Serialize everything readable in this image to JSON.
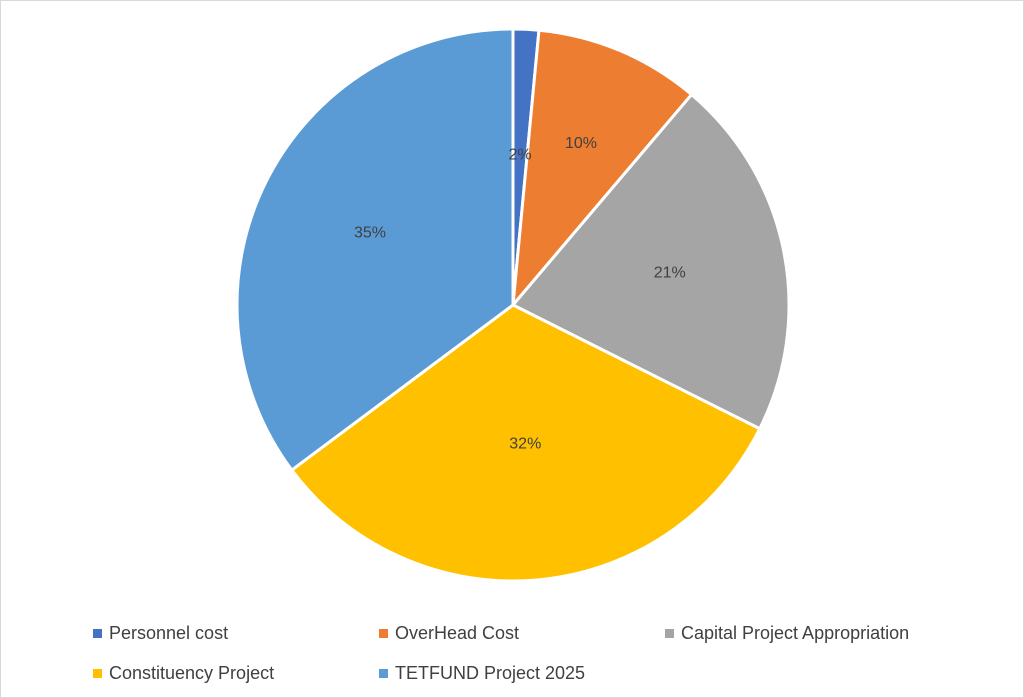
{
  "chart_data": {
    "type": "pie",
    "title": "",
    "start_angle_deg": 0,
    "direction": "clockwise",
    "legend_position": "bottom",
    "slices": [
      {
        "name": "Personnel cost",
        "value": 1.5,
        "label": "2%",
        "color": "#4472c4"
      },
      {
        "name": "OverHead Cost",
        "value": 9.7,
        "label": "10%",
        "color": "#ed7d31"
      },
      {
        "name": "Capital Project Appropriation",
        "value": 21.2,
        "label": "21%",
        "color": "#a5a5a5"
      },
      {
        "name": "Constituency Project",
        "value": 32.4,
        "label": "32%",
        "color": "#ffc000"
      },
      {
        "name": "TETFUND Project 2025",
        "value": 35.2,
        "label": "35%",
        "color": "#5b9bd5"
      }
    ],
    "legend_rows": [
      [
        0,
        1,
        2
      ],
      [
        3,
        4
      ]
    ]
  }
}
